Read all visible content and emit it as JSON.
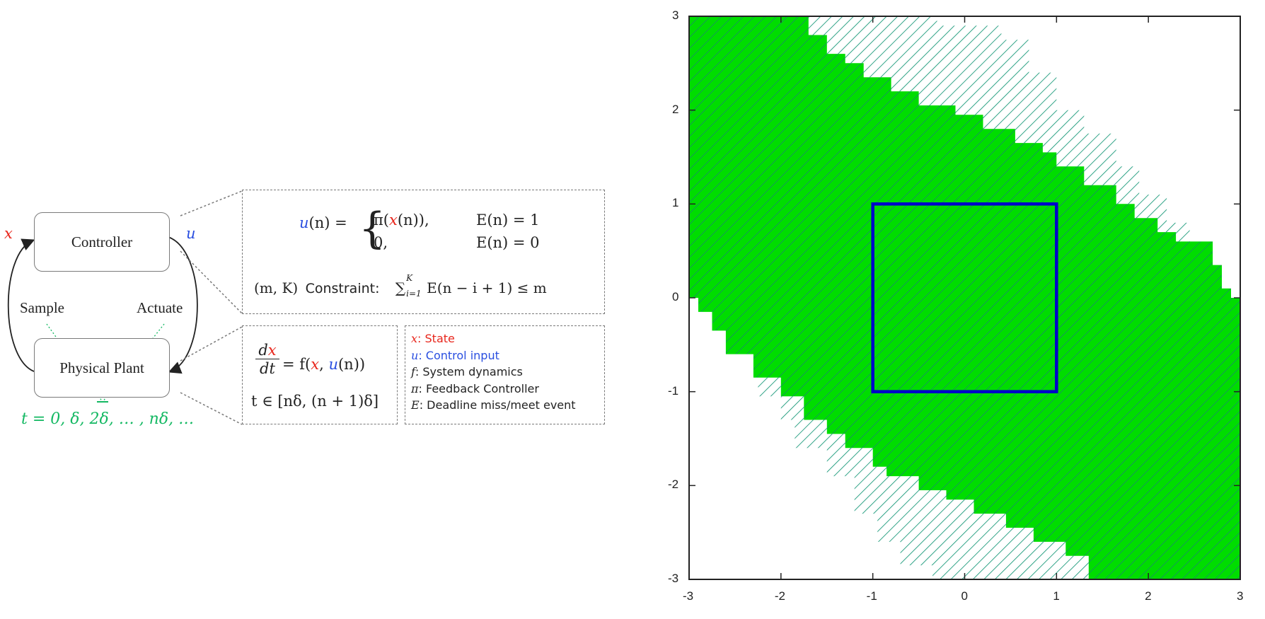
{
  "diagram": {
    "controller_label": "Controller",
    "plant_label": "Physical Plant",
    "state_symbol": "x",
    "input_symbol": "u",
    "sample_label": "Sample",
    "actuate_label": "Actuate",
    "time_sequence": "t = 0, δ, 2δ, … , nδ, …",
    "control_law": {
      "lhs_var": "u",
      "lhs_arg": "(n) =",
      "case1_pre": "π(",
      "case1_var": "x",
      "case1_post": "(n)),",
      "case1_cond": "E(n) = 1",
      "case2_expr": "0,",
      "case2_cond": "E(n) = 0"
    },
    "constraint": {
      "prefix": "(m, K)",
      "word": "Constraint:",
      "expr": "∑",
      "upper": "K",
      "lower": "i=1",
      "rest": "E(n − i + 1) ≤ m"
    },
    "dynamics": {
      "num_d": "d",
      "num_var": "x",
      "den": "dt",
      "rhs_pre": "= f(",
      "rhs_x": "x",
      "rhs_comma": ", ",
      "rhs_u": "u",
      "rhs_post": "(n))",
      "interval": "t ∈ [nδ, (n + 1)δ]"
    },
    "legend": [
      {
        "symbol": "x",
        "text": ": State",
        "color": "#e8261c"
      },
      {
        "symbol": "u",
        "text": ": Control input",
        "color": "#2a4fe0"
      },
      {
        "symbol": "f",
        "text": ": System dynamics",
        "color": "#222222"
      },
      {
        "symbol": "π",
        "text": ": Feedback Controller",
        "color": "#222222"
      },
      {
        "symbol": "E",
        "text": ": Deadline miss/meet event",
        "color": "#222222"
      }
    ]
  },
  "plot": {
    "x_ticks": [
      "-3",
      "-2",
      "-1",
      "0",
      "1",
      "2",
      "3"
    ],
    "y_ticks": [
      "3",
      "2",
      "1",
      "0",
      "-1",
      "-2",
      "-3"
    ],
    "xlim": [
      -3,
      3
    ],
    "ylim": [
      -3,
      3
    ],
    "fill_color": "#00dd00",
    "hatch_color": "#1a9a7a",
    "box_color": "#0000cc",
    "box_region": {
      "x": [
        -1,
        1
      ],
      "y": [
        -1,
        1
      ]
    }
  }
}
